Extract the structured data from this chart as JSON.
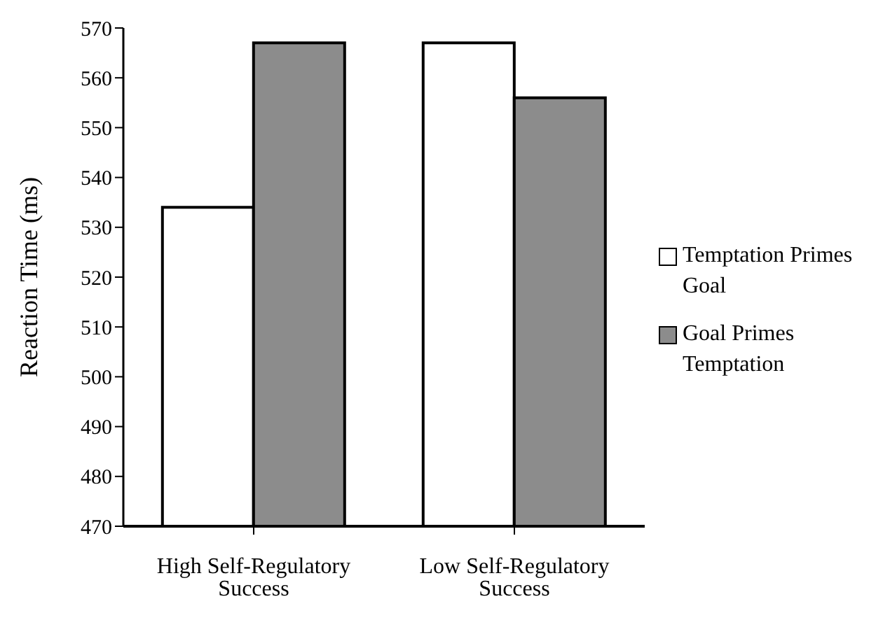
{
  "chart_data": {
    "type": "bar",
    "ylabel": "Reaction Time (ms)",
    "categories": [
      "High Self-Regulatory Success",
      "Low Self-Regulatory Success"
    ],
    "series": [
      {
        "name": "Temptation Primes Goal",
        "color": "#ffffff",
        "values": [
          534,
          567
        ]
      },
      {
        "name": "Goal Primes Temptation",
        "color": "#8c8c8c",
        "values": [
          567,
          556
        ]
      }
    ],
    "ylim": [
      470,
      570
    ],
    "yticks": [
      470,
      480,
      490,
      500,
      510,
      520,
      530,
      540,
      550,
      560,
      570
    ],
    "grid": false,
    "legend": "right"
  }
}
